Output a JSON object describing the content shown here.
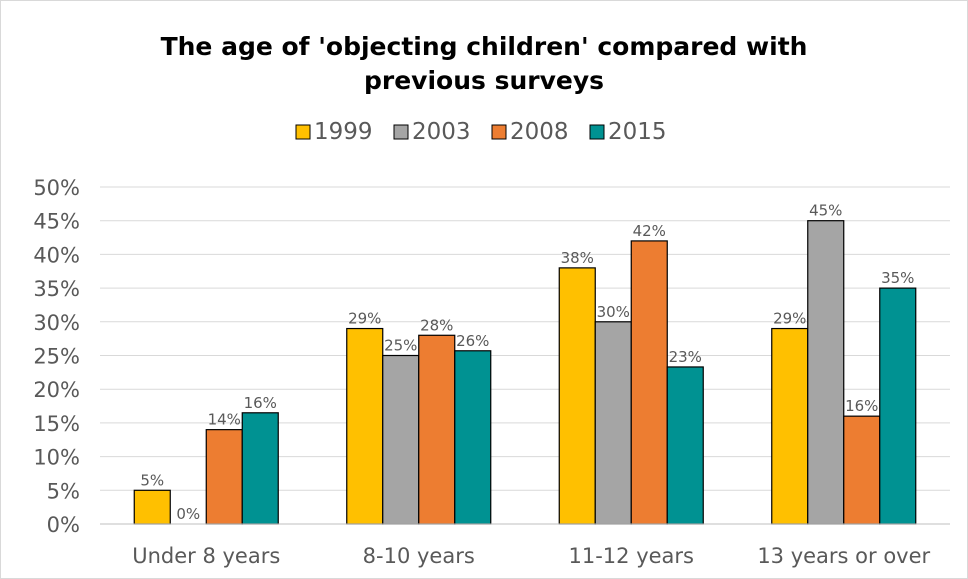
{
  "chart_data": {
    "type": "bar",
    "title_lines": [
      "The age of 'objecting children' compared with",
      "previous surveys"
    ],
    "categories": [
      "Under 8 years",
      "8-10 years",
      "11-12 years",
      "13 years or over"
    ],
    "series": [
      {
        "name": "1999",
        "color": "#ffc000",
        "values": [
          5,
          29,
          38,
          29
        ],
        "labels": [
          "5%",
          "29%",
          "38%",
          "29%"
        ]
      },
      {
        "name": "2003",
        "color": "#a5a5a5",
        "values": [
          0,
          25,
          30,
          45
        ],
        "labels": [
          "0%",
          "25%",
          "30%",
          "45%"
        ]
      },
      {
        "name": "2008",
        "color": "#ed7d31",
        "values": [
          14,
          28,
          42,
          16
        ],
        "labels": [
          "14%",
          "28%",
          "42%",
          "16%"
        ]
      },
      {
        "name": "2015",
        "color": "#009292",
        "values": [
          16.5,
          25.7,
          23.3,
          35
        ],
        "labels": [
          "16%",
          "26%",
          "23%",
          "35%"
        ]
      }
    ],
    "ylim": [
      0,
      50
    ],
    "yticks": [
      "0%",
      "5%",
      "10%",
      "15%",
      "20%",
      "25%",
      "30%",
      "35%",
      "40%",
      "45%",
      "50%"
    ],
    "grid": true,
    "legend": "top"
  }
}
